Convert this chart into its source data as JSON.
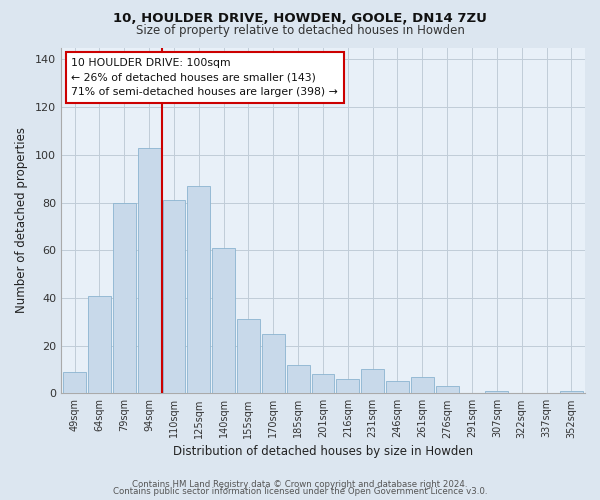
{
  "title": "10, HOULDER DRIVE, HOWDEN, GOOLE, DN14 7ZU",
  "subtitle": "Size of property relative to detached houses in Howden",
  "xlabel": "Distribution of detached houses by size in Howden",
  "ylabel": "Number of detached properties",
  "bar_labels": [
    "49sqm",
    "64sqm",
    "79sqm",
    "94sqm",
    "110sqm",
    "125sqm",
    "140sqm",
    "155sqm",
    "170sqm",
    "185sqm",
    "201sqm",
    "216sqm",
    "231sqm",
    "246sqm",
    "261sqm",
    "276sqm",
    "291sqm",
    "307sqm",
    "322sqm",
    "337sqm",
    "352sqm"
  ],
  "bar_values": [
    9,
    41,
    80,
    103,
    81,
    87,
    61,
    31,
    25,
    12,
    8,
    6,
    10,
    5,
    7,
    3,
    0,
    1,
    0,
    0,
    1
  ],
  "bar_color": "#c8d9ea",
  "bar_edge_color": "#8bb4d0",
  "vline_x": 3.5,
  "vline_color": "#cc0000",
  "ylim": [
    0,
    145
  ],
  "yticks": [
    0,
    20,
    40,
    60,
    80,
    100,
    120,
    140
  ],
  "annotation_line1": "10 HOULDER DRIVE: 100sqm",
  "annotation_line2": "← 26% of detached houses are smaller (143)",
  "annotation_line3": "71% of semi-detached houses are larger (398) →",
  "annotation_box_color": "#ffffff",
  "annotation_box_edge": "#cc0000",
  "footer_line1": "Contains HM Land Registry data © Crown copyright and database right 2024.",
  "footer_line2": "Contains public sector information licensed under the Open Government Licence v3.0.",
  "bg_color": "#dce6f0",
  "plot_bg_color": "#e8f0f8",
  "grid_color": "#c0ccd8"
}
